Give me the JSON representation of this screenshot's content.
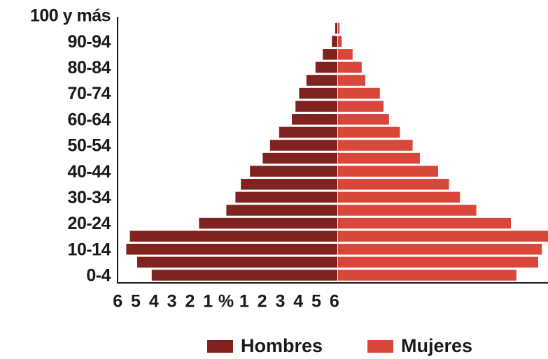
{
  "chart_data": {
    "type": "pyramid",
    "categories": [
      "0-4",
      null,
      "10-14",
      null,
      "20-24",
      null,
      "30-34",
      null,
      "40-44",
      null,
      "50-54",
      null,
      "60-64",
      null,
      "70-74",
      null,
      "80-84",
      null,
      "90-94",
      null,
      "100 y más"
    ],
    "series": [
      {
        "name": "Hombres",
        "color": "#7f2220",
        "values": [
          5.1,
          5.5,
          5.8,
          5.7,
          3.8,
          3.05,
          2.8,
          2.65,
          2.4,
          2.05,
          1.85,
          1.6,
          1.25,
          1.15,
          1.05,
          0.85,
          0.6,
          0.4,
          0.15,
          0.06,
          0
        ]
      },
      {
        "name": "Mujeres",
        "color": "#d9463a",
        "values": [
          4.9,
          5.5,
          5.6,
          5.8,
          4.75,
          3.8,
          3.35,
          3.05,
          2.75,
          2.25,
          2.05,
          1.7,
          1.4,
          1.25,
          1.15,
          0.75,
          0.65,
          0.4,
          0.1,
          0.04,
          0
        ]
      }
    ],
    "xlim": [
      -6,
      6
    ],
    "xticks": [
      {
        "value": -6,
        "label": "6"
      },
      {
        "value": -5,
        "label": "5"
      },
      {
        "value": -4,
        "label": "4"
      },
      {
        "value": -3,
        "label": "3"
      },
      {
        "value": -2,
        "label": "2"
      },
      {
        "value": -1,
        "label": "1"
      },
      {
        "value": 0,
        "label": "%"
      },
      1,
      2,
      3,
      4,
      5,
      6
    ],
    "legend": "bottom"
  }
}
